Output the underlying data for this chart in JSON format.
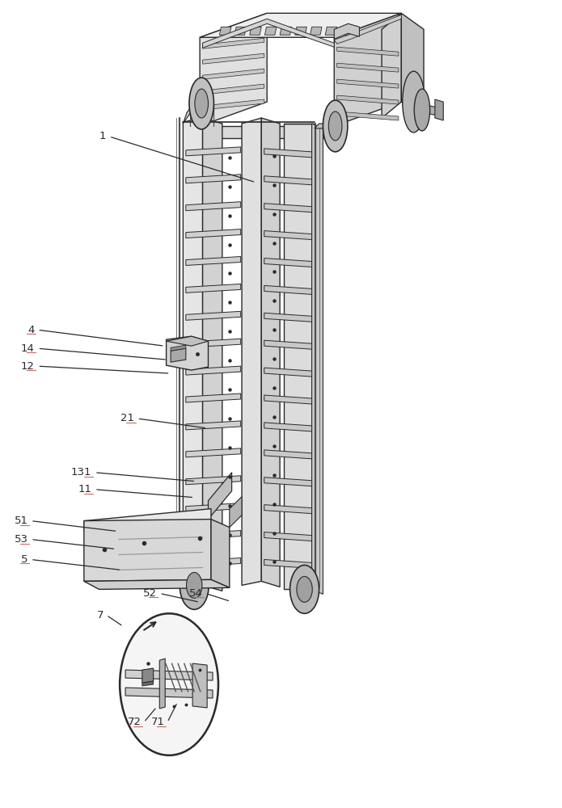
{
  "bg_color": "#ffffff",
  "line_color": "#2a2a2a",
  "fig_width": 6.95,
  "fig_height": 10.0
}
